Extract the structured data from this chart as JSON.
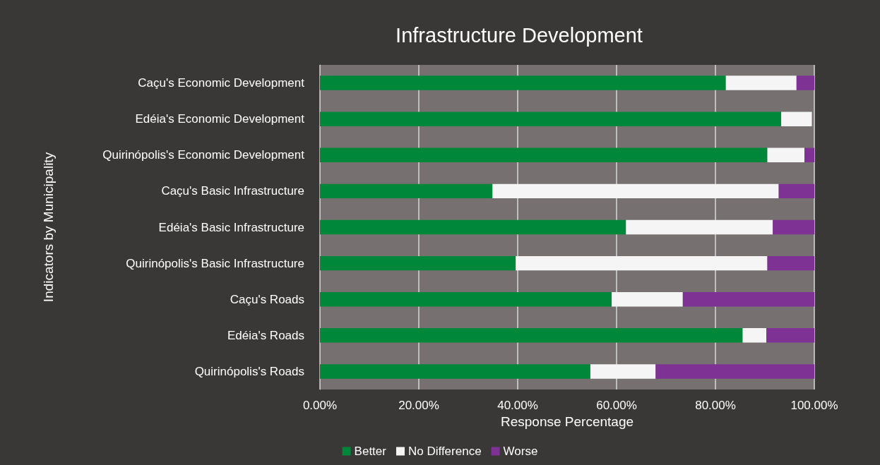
{
  "chart_data": {
    "type": "bar",
    "orientation": "horizontal",
    "stacked": true,
    "title": "Infrastructure Development",
    "xlabel": "Response Percentage",
    "ylabel": "Indicators by Municipality",
    "categories": [
      "Caçu's Economic Development",
      "Edéia's Economic Development",
      "Quirinópolis's Economic Development",
      "Caçu's Basic Infrastructure",
      "Edéia's Basic Infrastructure",
      "Quirinópolis's Basic Infrastructure",
      "Caçu's Roads",
      "Edéia's Roads",
      "Quirinópolis's Roads"
    ],
    "series": [
      {
        "name": "Better",
        "color": "#00873a",
        "values": [
          82.1,
          93.3,
          90.5,
          34.9,
          61.9,
          39.6,
          59.0,
          85.5,
          54.7
        ]
      },
      {
        "name": "No Difference",
        "color": "#f5f5f5",
        "values": [
          14.3,
          6.2,
          7.5,
          57.9,
          29.7,
          50.9,
          14.4,
          4.8,
          13.2
        ]
      },
      {
        "name": "Worse",
        "color": "#7e3294",
        "values": [
          3.6,
          null,
          2.0,
          7.2,
          8.4,
          9.5,
          26.6,
          9.7,
          32.1
        ]
      }
    ],
    "xlim": [
      0,
      100
    ],
    "xticks": [
      {
        "value": 0,
        "label": "0.00%"
      },
      {
        "value": 20,
        "label": "20.00%"
      },
      {
        "value": 40,
        "label": "40.00%"
      },
      {
        "value": 60,
        "label": "60.00%"
      },
      {
        "value": 80,
        "label": "80.00%"
      },
      {
        "value": 100,
        "label": "100.00%"
      }
    ],
    "grid": "x",
    "legend": "bottom"
  }
}
